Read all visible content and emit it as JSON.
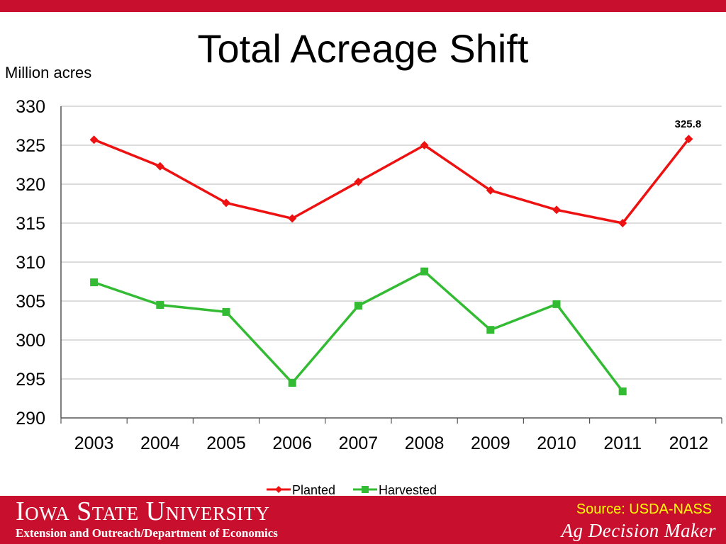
{
  "page": {
    "title": "Total Acreage Shift",
    "source": "Source: USDA-NASS",
    "university": "Iowa State University",
    "department": "Extension and Outreach/Department of Economics",
    "brand": "Ag Decision Maker"
  },
  "colors": {
    "brand_red": "#c8102e",
    "planted": "#ee1111",
    "harvested": "#33bb33",
    "source_text": "#ffff00"
  },
  "chart_data": {
    "type": "line",
    "ylabel": "Million acres",
    "xlabel": "",
    "categories": [
      "2003",
      "2004",
      "2005",
      "2006",
      "2007",
      "2008",
      "2009",
      "2010",
      "2011",
      "2012"
    ],
    "ylim": [
      290,
      330
    ],
    "yticks": [
      290,
      295,
      300,
      305,
      310,
      315,
      320,
      325,
      330
    ],
    "grid": true,
    "legend_position": "bottom",
    "series": [
      {
        "name": "Planted",
        "color": "#ee1111",
        "marker": "diamond",
        "values": [
          325.7,
          322.3,
          317.6,
          315.6,
          320.3,
          325.0,
          319.2,
          316.7,
          315.0,
          325.8
        ]
      },
      {
        "name": "Harvested",
        "color": "#33bb33",
        "marker": "square",
        "values": [
          307.4,
          304.5,
          303.6,
          294.5,
          304.4,
          308.8,
          301.3,
          304.6,
          293.4,
          null
        ]
      }
    ],
    "annotations": [
      {
        "series": "Planted",
        "category": "2012",
        "text": "325.8"
      }
    ]
  }
}
